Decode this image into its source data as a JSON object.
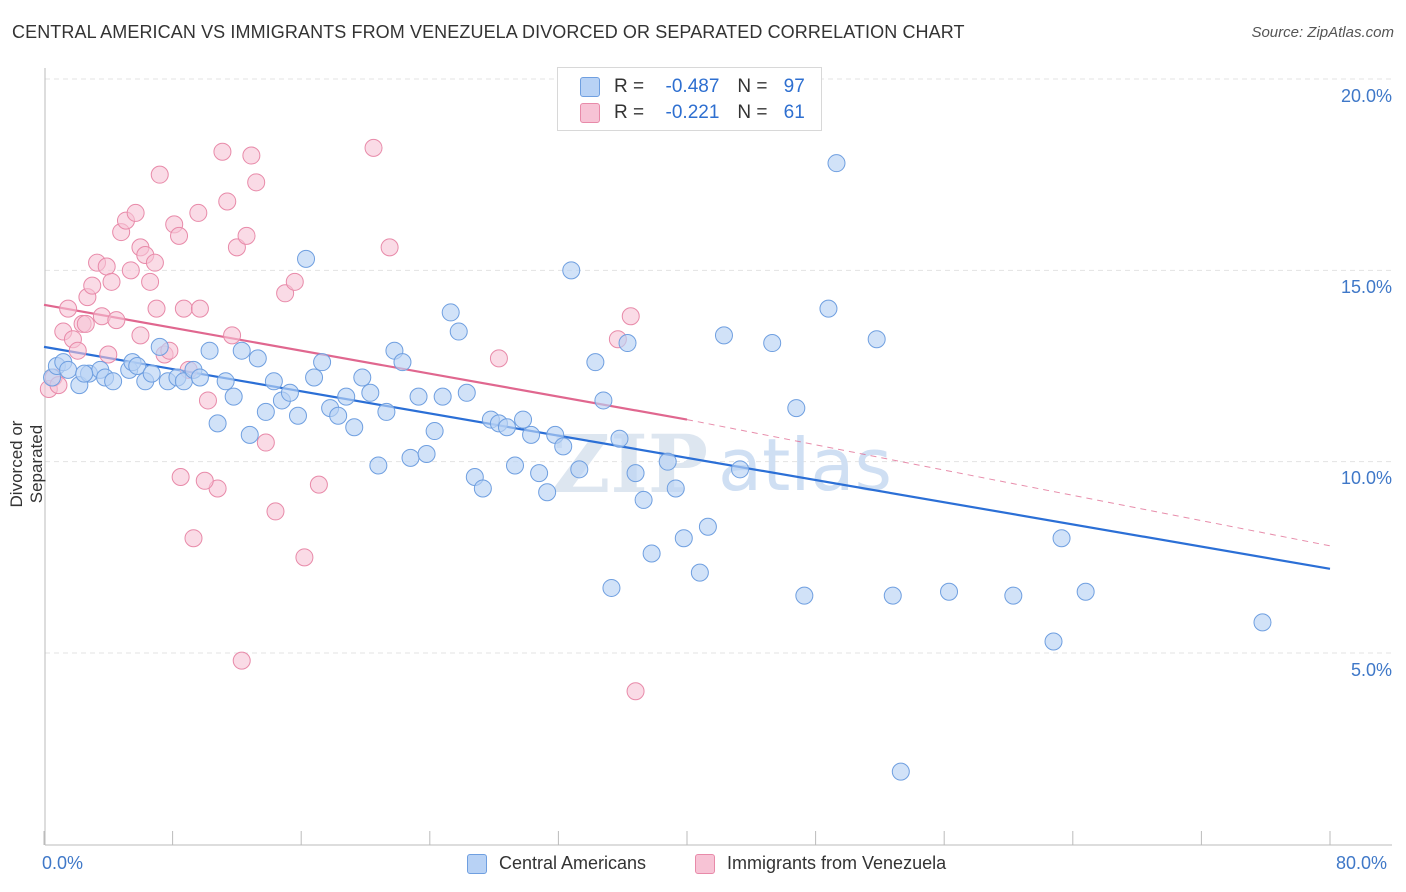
{
  "title": "CENTRAL AMERICAN VS IMMIGRANTS FROM VENEZUELA DIVORCED OR SEPARATED CORRELATION CHART",
  "source": "Source: ZipAtlas.com",
  "legend_top": {
    "rows": [
      {
        "r_label": "R =",
        "r_value": "-0.487",
        "n_label": "N =",
        "n_value": "97"
      },
      {
        "r_label": "R =",
        "r_value": "-0.221",
        "n_label": "N =",
        "n_value": "61"
      }
    ]
  },
  "legend_bottom": [
    "Central Americans",
    "Immigrants from Venezuela"
  ],
  "colors": {
    "blue_fill": "#b8d2f5",
    "blue_stroke": "#6f9fe0",
    "blue_line": "#2b6fd6",
    "pink_fill": "#f7c3d5",
    "pink_stroke": "#e88aa9",
    "pink_line": "#e0678f",
    "grid": "#e3e3e3",
    "tick_text": "#3f78c8"
  },
  "chart_data": {
    "type": "scatter",
    "title": "CENTRAL AMERICAN VS IMMIGRANTS FROM VENEZUELA DIVORCED OR SEPARATED CORRELATION CHART",
    "xlabel": "",
    "ylabel": "Divorced or Separated",
    "xlim": [
      0,
      80
    ],
    "ylim": [
      0,
      20.5
    ],
    "x_tick_labels": [
      "0.0%",
      "80.0%"
    ],
    "y_ticks": [
      5,
      10,
      15,
      20
    ],
    "y_tick_labels": [
      "5.0%",
      "10.0%",
      "15.0%",
      "20.0%"
    ],
    "watermark": "ZIPatlas",
    "series": [
      {
        "name": "Central Americans",
        "R": -0.487,
        "N": 97,
        "trend": {
          "x0": 0,
          "y0": 13.0,
          "x1": 80,
          "y1": 7.2
        },
        "points": [
          [
            0.5,
            12.2
          ],
          [
            0.8,
            12.5
          ],
          [
            1.2,
            12.6
          ],
          [
            1.5,
            12.4
          ],
          [
            2.2,
            12.0
          ],
          [
            2.8,
            12.3
          ],
          [
            3.5,
            12.4
          ],
          [
            3.8,
            12.2
          ],
          [
            4.3,
            12.1
          ],
          [
            5.3,
            12.4
          ],
          [
            5.5,
            12.6
          ],
          [
            5.8,
            12.5
          ],
          [
            6.3,
            12.1
          ],
          [
            6.7,
            12.3
          ],
          [
            7.2,
            13.0
          ],
          [
            7.7,
            12.1
          ],
          [
            8.3,
            12.2
          ],
          [
            8.7,
            12.1
          ],
          [
            9.3,
            12.4
          ],
          [
            9.7,
            12.2
          ],
          [
            10.3,
            12.9
          ],
          [
            10.8,
            11.0
          ],
          [
            11.3,
            12.1
          ],
          [
            11.8,
            11.7
          ],
          [
            12.3,
            12.9
          ],
          [
            12.8,
            10.7
          ],
          [
            13.3,
            12.7
          ],
          [
            13.8,
            11.3
          ],
          [
            14.3,
            12.1
          ],
          [
            14.8,
            11.6
          ],
          [
            15.3,
            11.8
          ],
          [
            15.8,
            11.2
          ],
          [
            16.3,
            15.3
          ],
          [
            16.8,
            12.2
          ],
          [
            17.3,
            12.6
          ],
          [
            17.8,
            11.4
          ],
          [
            18.3,
            11.2
          ],
          [
            18.8,
            11.7
          ],
          [
            19.3,
            10.9
          ],
          [
            19.8,
            12.2
          ],
          [
            20.3,
            11.8
          ],
          [
            20.8,
            9.9
          ],
          [
            21.3,
            11.3
          ],
          [
            21.8,
            12.9
          ],
          [
            22.3,
            12.6
          ],
          [
            22.8,
            10.1
          ],
          [
            23.3,
            11.7
          ],
          [
            23.8,
            10.2
          ],
          [
            24.3,
            10.8
          ],
          [
            24.8,
            11.7
          ],
          [
            25.3,
            13.9
          ],
          [
            25.8,
            13.4
          ],
          [
            26.3,
            11.8
          ],
          [
            26.8,
            9.6
          ],
          [
            27.3,
            9.3
          ],
          [
            27.8,
            11.1
          ],
          [
            28.3,
            11.0
          ],
          [
            28.8,
            10.9
          ],
          [
            29.3,
            9.9
          ],
          [
            29.8,
            11.1
          ],
          [
            30.3,
            10.7
          ],
          [
            30.8,
            9.7
          ],
          [
            31.3,
            9.2
          ],
          [
            31.8,
            10.7
          ],
          [
            32.3,
            10.4
          ],
          [
            32.8,
            15.0
          ],
          [
            33.3,
            9.8
          ],
          [
            34.3,
            12.6
          ],
          [
            34.8,
            11.6
          ],
          [
            35.3,
            6.7
          ],
          [
            35.8,
            10.6
          ],
          [
            36.3,
            13.1
          ],
          [
            36.8,
            9.7
          ],
          [
            37.3,
            9.0
          ],
          [
            37.8,
            7.6
          ],
          [
            38.8,
            10.0
          ],
          [
            39.3,
            9.3
          ],
          [
            39.8,
            8.0
          ],
          [
            40.8,
            7.1
          ],
          [
            41.3,
            8.3
          ],
          [
            42.3,
            13.3
          ],
          [
            43.3,
            9.8
          ],
          [
            45.3,
            13.1
          ],
          [
            46.8,
            11.4
          ],
          [
            47.3,
            6.5
          ],
          [
            48.8,
            14.0
          ],
          [
            49.3,
            17.8
          ],
          [
            51.8,
            13.2
          ],
          [
            52.8,
            6.5
          ],
          [
            53.3,
            1.9
          ],
          [
            56.3,
            6.6
          ],
          [
            60.3,
            6.5
          ],
          [
            62.8,
            5.3
          ],
          [
            63.3,
            8.0
          ],
          [
            64.8,
            6.6
          ],
          [
            75.8,
            5.8
          ],
          [
            2.5,
            12.3
          ]
        ]
      },
      {
        "name": "Immigrants from Venezuela",
        "R": -0.221,
        "N": 61,
        "trend": {
          "x0": 0,
          "y0": 14.1,
          "x1": 40,
          "y1": 11.1
        },
        "trend_dashed": {
          "x0": 40,
          "y0": 11.1,
          "x1": 80,
          "y1": 7.8
        },
        "points": [
          [
            0.3,
            11.9
          ],
          [
            0.6,
            12.2
          ],
          [
            0.9,
            12.0
          ],
          [
            1.2,
            13.4
          ],
          [
            1.5,
            14.0
          ],
          [
            1.8,
            13.2
          ],
          [
            2.1,
            12.9
          ],
          [
            2.4,
            13.6
          ],
          [
            2.7,
            14.3
          ],
          [
            3.0,
            14.6
          ],
          [
            3.3,
            15.2
          ],
          [
            3.6,
            13.8
          ],
          [
            3.9,
            15.1
          ],
          [
            4.2,
            14.7
          ],
          [
            4.5,
            13.7
          ],
          [
            4.8,
            16.0
          ],
          [
            5.1,
            16.3
          ],
          [
            5.4,
            15.0
          ],
          [
            5.7,
            16.5
          ],
          [
            6.0,
            15.6
          ],
          [
            6.3,
            15.4
          ],
          [
            6.6,
            14.7
          ],
          [
            6.9,
            15.2
          ],
          [
            7.2,
            17.5
          ],
          [
            7.5,
            12.8
          ],
          [
            7.8,
            12.9
          ],
          [
            8.1,
            16.2
          ],
          [
            8.4,
            15.9
          ],
          [
            8.7,
            14.0
          ],
          [
            9.0,
            12.4
          ],
          [
            9.6,
            16.5
          ],
          [
            10.2,
            11.6
          ],
          [
            10.8,
            9.3
          ],
          [
            11.4,
            16.8
          ],
          [
            12.0,
            15.6
          ],
          [
            12.6,
            15.9
          ],
          [
            13.2,
            17.3
          ],
          [
            13.8,
            10.5
          ],
          [
            11.1,
            18.1
          ],
          [
            12.9,
            18.0
          ],
          [
            14.4,
            8.7
          ],
          [
            15.0,
            14.4
          ],
          [
            15.6,
            14.7
          ],
          [
            16.2,
            7.5
          ],
          [
            17.1,
            9.4
          ],
          [
            6.0,
            13.3
          ],
          [
            7.0,
            14.0
          ],
          [
            8.5,
            9.6
          ],
          [
            9.3,
            8.0
          ],
          [
            10.0,
            9.5
          ],
          [
            11.7,
            13.3
          ],
          [
            12.3,
            4.8
          ],
          [
            20.5,
            18.2
          ],
          [
            21.5,
            15.6
          ],
          [
            28.3,
            12.7
          ],
          [
            35.7,
            13.2
          ],
          [
            36.5,
            13.8
          ],
          [
            36.8,
            4.0
          ],
          [
            4.0,
            12.8
          ],
          [
            2.6,
            13.6
          ],
          [
            9.7,
            14.0
          ]
        ]
      }
    ]
  }
}
